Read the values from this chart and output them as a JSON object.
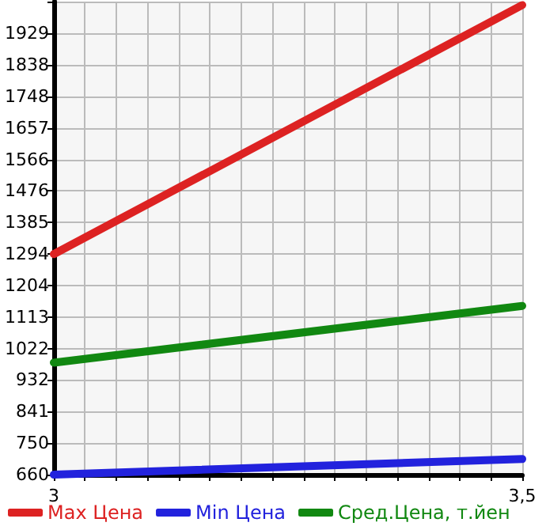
{
  "chart_data": {
    "type": "line",
    "x": [
      3,
      3.5
    ],
    "series": [
      {
        "name": "Max Цена",
        "color": "#dd2222",
        "values": [
          1294,
          2010
        ]
      },
      {
        "name": "Min Цена",
        "color": "#2222dd",
        "values": [
          660,
          705
        ]
      },
      {
        "name": "Сред.Цена, т.йен",
        "color": "#118811",
        "values": [
          982,
          1145
        ]
      }
    ],
    "xlim": [
      3,
      3.5
    ],
    "xticks": [
      3,
      {
        "value": 3.0333,
        "label": null
      },
      {
        "value": 3.0667,
        "label": null
      },
      {
        "value": 3.1,
        "label": null
      },
      {
        "value": 3.1333,
        "label": null
      },
      {
        "value": 3.1667,
        "label": null
      },
      {
        "value": 3.2,
        "label": null
      },
      {
        "value": 3.2333,
        "label": null
      },
      {
        "value": 3.2667,
        "label": null
      },
      {
        "value": 3.3,
        "label": null
      },
      {
        "value": 3.3333,
        "label": null
      },
      {
        "value": 3.3667,
        "label": null
      },
      {
        "value": 3.4,
        "label": null
      },
      {
        "value": 3.4333,
        "label": null
      },
      {
        "value": 3.4667,
        "label": null
      },
      {
        "value": 3.5,
        "label": "3,5"
      }
    ],
    "ylim": [
      660,
      2020
    ],
    "yticks": [
      660,
      750,
      841,
      932,
      1022,
      1113,
      1204,
      1294,
      1385,
      1476,
      1566,
      1657,
      1748,
      1838,
      1929,
      {
        "value": 2020,
        "label": null
      }
    ],
    "grid": true,
    "legend": "bottom",
    "marker": "none",
    "line_style": "solid"
  }
}
